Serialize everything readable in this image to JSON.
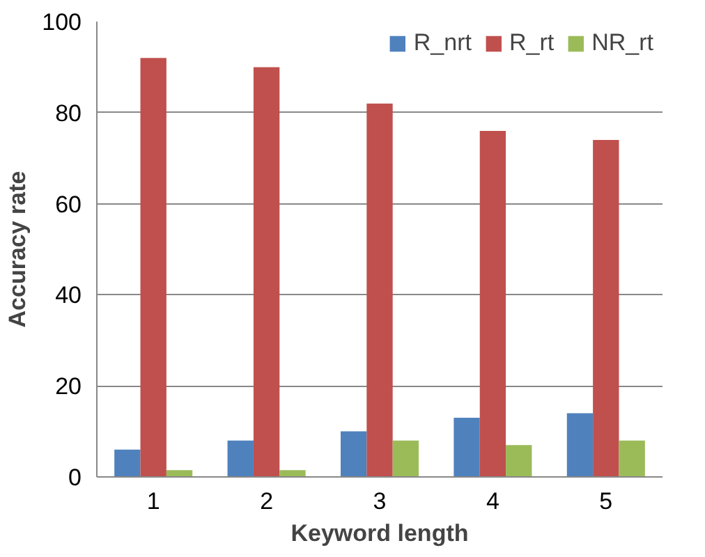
{
  "chart_data": {
    "type": "bar",
    "xlabel": "Keyword length",
    "ylabel": "Accuracy rate",
    "categories": [
      "1",
      "2",
      "3",
      "4",
      "5"
    ],
    "series": [
      {
        "name": "R_nrt",
        "color": "#4f81bd",
        "values": [
          6,
          8,
          10,
          13,
          14
        ]
      },
      {
        "name": "R_rt",
        "color": "#c0504d",
        "values": [
          92,
          90,
          82,
          76,
          74
        ]
      },
      {
        "name": "NR_rt",
        "color": "#9bbb59",
        "values": [
          1.5,
          1.5,
          8,
          7,
          8
        ]
      }
    ],
    "ylim": [
      0,
      100
    ],
    "yticks": [
      0,
      20,
      40,
      60,
      80,
      100
    ],
    "grid": "y",
    "legend": "top right"
  }
}
